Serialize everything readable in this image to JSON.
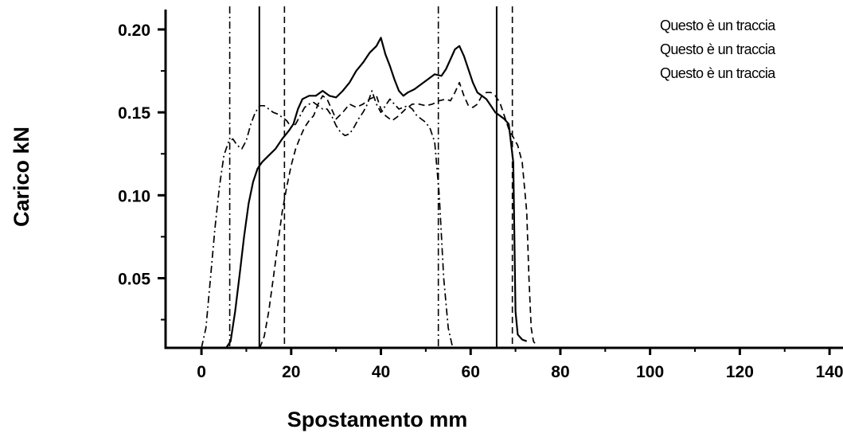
{
  "chart_data": {
    "type": "line",
    "title": "",
    "xlabel": "Spostamento mm",
    "ylabel": "Carico kN",
    "xlim": [
      -8,
      143
    ],
    "ylim": [
      0.008,
      0.212
    ],
    "x_ticks": [
      0,
      20,
      40,
      60,
      80,
      100,
      120,
      140
    ],
    "x_tick_labels": [
      "0",
      "20",
      "40",
      "60",
      "80",
      "100",
      "120",
      "140"
    ],
    "y_ticks": [
      0.05,
      0.1,
      0.15,
      0.2
    ],
    "y_tick_labels": [
      "0.05",
      "0.10",
      "0.15",
      "0.20"
    ],
    "grid": false,
    "legend_position": "top-right",
    "series": [
      {
        "name": "Questo è un traccia",
        "style": "solid",
        "color": "#000000",
        "points": [
          [
            5.5,
            0.008
          ],
          [
            6.5,
            0.012
          ],
          [
            7.5,
            0.03
          ],
          [
            8.5,
            0.052
          ],
          [
            9.5,
            0.075
          ],
          [
            10.5,
            0.095
          ],
          [
            11.5,
            0.108
          ],
          [
            12.5,
            0.116
          ],
          [
            13.5,
            0.12
          ],
          [
            15,
            0.124
          ],
          [
            16.5,
            0.128
          ],
          [
            18,
            0.134
          ],
          [
            19.5,
            0.139
          ],
          [
            20.5,
            0.143
          ],
          [
            21.5,
            0.152
          ],
          [
            22.5,
            0.158
          ],
          [
            24,
            0.16
          ],
          [
            25.5,
            0.16
          ],
          [
            27,
            0.163
          ],
          [
            28.5,
            0.16
          ],
          [
            30,
            0.159
          ],
          [
            31.5,
            0.163
          ],
          [
            33,
            0.168
          ],
          [
            34.5,
            0.175
          ],
          [
            36,
            0.18
          ],
          [
            37.5,
            0.186
          ],
          [
            39,
            0.19
          ],
          [
            40,
            0.195
          ],
          [
            41,
            0.185
          ],
          [
            42,
            0.178
          ],
          [
            43,
            0.17
          ],
          [
            44,
            0.163
          ],
          [
            45,
            0.16
          ],
          [
            46,
            0.162
          ],
          [
            47.5,
            0.164
          ],
          [
            49,
            0.167
          ],
          [
            50.5,
            0.17
          ],
          [
            52,
            0.173
          ],
          [
            53.5,
            0.172
          ],
          [
            54.5,
            0.176
          ],
          [
            55.5,
            0.182
          ],
          [
            56.5,
            0.188
          ],
          [
            57.5,
            0.19
          ],
          [
            58.5,
            0.184
          ],
          [
            59.5,
            0.176
          ],
          [
            60.5,
            0.168
          ],
          [
            61.5,
            0.162
          ],
          [
            62.5,
            0.16
          ],
          [
            63.5,
            0.158
          ],
          [
            64.5,
            0.154
          ],
          [
            65.5,
            0.15
          ],
          [
            66.5,
            0.148
          ],
          [
            67.5,
            0.146
          ],
          [
            68.5,
            0.143
          ],
          [
            69.5,
            0.12
          ],
          [
            70,
            0.03
          ],
          [
            70.5,
            0.016
          ],
          [
            71.5,
            0.013
          ],
          [
            72.5,
            0.012
          ]
        ]
      },
      {
        "name": "Questo è un traccia",
        "style": "dash",
        "color": "#000000",
        "points": [
          [
            13,
            0.008
          ],
          [
            14,
            0.015
          ],
          [
            15,
            0.03
          ],
          [
            16,
            0.05
          ],
          [
            17,
            0.07
          ],
          [
            18,
            0.09
          ],
          [
            19,
            0.105
          ],
          [
            20,
            0.118
          ],
          [
            21,
            0.128
          ],
          [
            22,
            0.135
          ],
          [
            23,
            0.141
          ],
          [
            24,
            0.145
          ],
          [
            25,
            0.148
          ],
          [
            26,
            0.155
          ],
          [
            27,
            0.16
          ],
          [
            28,
            0.158
          ],
          [
            29,
            0.152
          ],
          [
            30,
            0.146
          ],
          [
            31.5,
            0.15
          ],
          [
            33,
            0.155
          ],
          [
            34.5,
            0.153
          ],
          [
            36,
            0.155
          ],
          [
            37.5,
            0.158
          ],
          [
            39,
            0.16
          ],
          [
            40,
            0.152
          ],
          [
            41,
            0.148
          ],
          [
            42.5,
            0.145
          ],
          [
            44,
            0.148
          ],
          [
            45.5,
            0.152
          ],
          [
            47,
            0.155
          ],
          [
            48.5,
            0.155
          ],
          [
            50,
            0.154
          ],
          [
            51.5,
            0.155
          ],
          [
            53,
            0.157
          ],
          [
            54.5,
            0.158
          ],
          [
            55.5,
            0.157
          ],
          [
            56.5,
            0.162
          ],
          [
            57.5,
            0.168
          ],
          [
            58.5,
            0.16
          ],
          [
            59.5,
            0.154
          ],
          [
            60.5,
            0.153
          ],
          [
            61.5,
            0.155
          ],
          [
            62.5,
            0.16
          ],
          [
            63.5,
            0.162
          ],
          [
            64.5,
            0.162
          ],
          [
            65.5,
            0.16
          ],
          [
            66.5,
            0.156
          ],
          [
            67.5,
            0.148
          ],
          [
            68.5,
            0.14
          ],
          [
            69.5,
            0.135
          ],
          [
            70.5,
            0.13
          ],
          [
            71.5,
            0.12
          ],
          [
            72.5,
            0.09
          ],
          [
            73,
            0.05
          ],
          [
            73.5,
            0.02
          ],
          [
            74,
            0.012
          ],
          [
            74.5,
            0.01
          ]
        ]
      },
      {
        "name": "Questo è un traccia",
        "style": "dash-dot",
        "color": "#000000",
        "points": [
          [
            0,
            0.008
          ],
          [
            1,
            0.02
          ],
          [
            2,
            0.05
          ],
          [
            3,
            0.08
          ],
          [
            4,
            0.105
          ],
          [
            5,
            0.124
          ],
          [
            6,
            0.132
          ],
          [
            7,
            0.134
          ],
          [
            8,
            0.13
          ],
          [
            9,
            0.128
          ],
          [
            10,
            0.133
          ],
          [
            11,
            0.143
          ],
          [
            12,
            0.15
          ],
          [
            13,
            0.154
          ],
          [
            14,
            0.154
          ],
          [
            15,
            0.152
          ],
          [
            16,
            0.15
          ],
          [
            17,
            0.149
          ],
          [
            18,
            0.147
          ],
          [
            19,
            0.145
          ],
          [
            20,
            0.141
          ],
          [
            21,
            0.143
          ],
          [
            22,
            0.148
          ],
          [
            23,
            0.153
          ],
          [
            24,
            0.155
          ],
          [
            25,
            0.156
          ],
          [
            26,
            0.154
          ],
          [
            27,
            0.152
          ],
          [
            28,
            0.152
          ],
          [
            29,
            0.148
          ],
          [
            30,
            0.142
          ],
          [
            31,
            0.138
          ],
          [
            32,
            0.136
          ],
          [
            33,
            0.137
          ],
          [
            34,
            0.141
          ],
          [
            35,
            0.146
          ],
          [
            36,
            0.15
          ],
          [
            37,
            0.155
          ],
          [
            38,
            0.163
          ],
          [
            39,
            0.155
          ],
          [
            40,
            0.15
          ],
          [
            41,
            0.154
          ],
          [
            42,
            0.158
          ],
          [
            43,
            0.155
          ],
          [
            44,
            0.152
          ],
          [
            45,
            0.153
          ],
          [
            46,
            0.154
          ],
          [
            47,
            0.152
          ],
          [
            48,
            0.148
          ],
          [
            49,
            0.146
          ],
          [
            50,
            0.144
          ],
          [
            51,
            0.14
          ],
          [
            52,
            0.132
          ],
          [
            53,
            0.1
          ],
          [
            54,
            0.05
          ],
          [
            55,
            0.02
          ],
          [
            56,
            0.008
          ]
        ]
      }
    ],
    "vertical_markers": [
      {
        "x": 6.3,
        "style": "dash-dot"
      },
      {
        "x": 12.9,
        "style": "solid"
      },
      {
        "x": 18.5,
        "style": "dash"
      },
      {
        "x": 52.8,
        "style": "dash-dot"
      },
      {
        "x": 65.8,
        "style": "solid"
      },
      {
        "x": 69.3,
        "style": "dash"
      }
    ]
  }
}
